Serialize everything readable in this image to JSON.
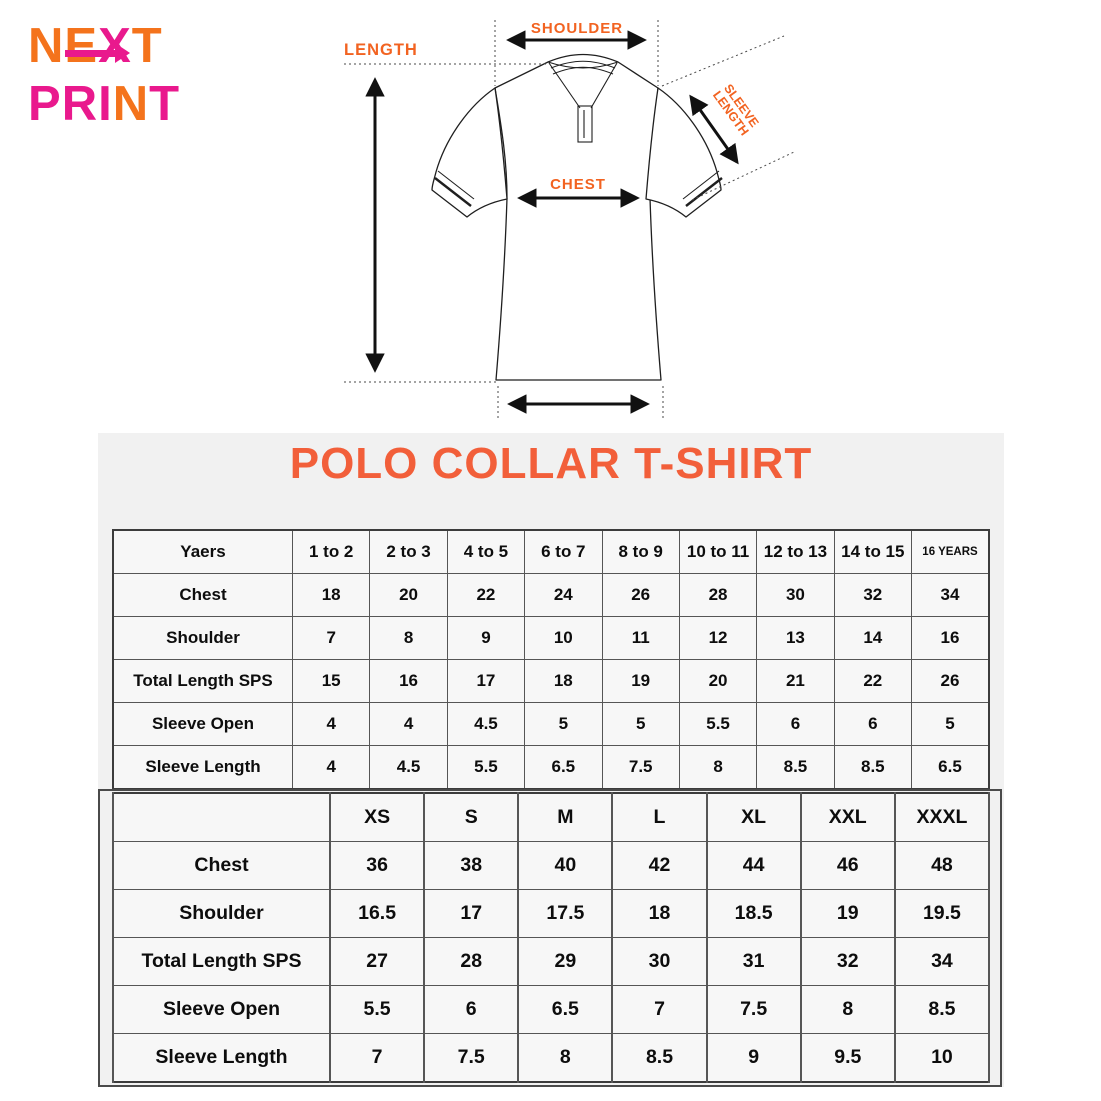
{
  "colors": {
    "orange": "#f4731c",
    "pink": "#e9198d",
    "title": "#f25f3a",
    "label": "#f26321",
    "panel_bg": "#f1f1f1",
    "cell_bg": "#f7f7f7"
  },
  "logo": {
    "next": [
      {
        "ch": "N",
        "color": "orange"
      },
      {
        "ch": "E",
        "color": "orange"
      },
      {
        "ch": "X",
        "color": "pink"
      },
      {
        "ch": "T",
        "color": "orange"
      }
    ],
    "print": [
      {
        "ch": "P",
        "color": "pink"
      },
      {
        "ch": "R",
        "color": "pink"
      },
      {
        "ch": "I",
        "color": "pink"
      },
      {
        "ch": "N",
        "color": "orange"
      },
      {
        "ch": "T",
        "color": "pink"
      }
    ]
  },
  "diagram": {
    "length_label": "LENGTH",
    "shoulder_label": "SHOULDER",
    "chest_label": "CHEST",
    "sleeve_label_line1": "SLEEVE",
    "sleeve_label_line2": "LENGTH"
  },
  "title": "POLO COLLAR T-SHIRT",
  "tables": {
    "kids": {
      "header": [
        "Yaers",
        "1 to 2",
        "2 to 3",
        "4 to 5",
        "6 to 7",
        "8 to 9",
        "10 to 11",
        "12 to 13",
        "14 to 15",
        "16 YEARS"
      ],
      "rows": [
        [
          "Chest",
          "18",
          "20",
          "22",
          "24",
          "26",
          "28",
          "30",
          "32",
          "34"
        ],
        [
          "Shoulder",
          "7",
          "8",
          "9",
          "10",
          "11",
          "12",
          "13",
          "14",
          "16"
        ],
        [
          "Total Length SPS",
          "15",
          "16",
          "17",
          "18",
          "19",
          "20",
          "21",
          "22",
          "26"
        ],
        [
          "Sleeve Open",
          "4",
          "4",
          "4.5",
          "5",
          "5",
          "5.5",
          "6",
          "6",
          "5"
        ],
        [
          "Sleeve Length",
          "4",
          "4.5",
          "5.5",
          "6.5",
          "7.5",
          "8",
          "8.5",
          "8.5",
          "6.5"
        ]
      ]
    },
    "adults": {
      "header": [
        "",
        "XS",
        "S",
        "M",
        "L",
        "XL",
        "XXL",
        "XXXL"
      ],
      "rows": [
        [
          "Chest",
          "36",
          "38",
          "40",
          "42",
          "44",
          "46",
          "48"
        ],
        [
          "Shoulder",
          "16.5",
          "17",
          "17.5",
          "18",
          "18.5",
          "19",
          "19.5"
        ],
        [
          "Total Length SPS",
          "27",
          "28",
          "29",
          "30",
          "31",
          "32",
          "34"
        ],
        [
          "Sleeve Open",
          "5.5",
          "6",
          "6.5",
          "7",
          "7.5",
          "8",
          "8.5"
        ],
        [
          "Sleeve Length",
          "7",
          "7.5",
          "8",
          "8.5",
          "9",
          "9.5",
          "10"
        ]
      ]
    }
  }
}
